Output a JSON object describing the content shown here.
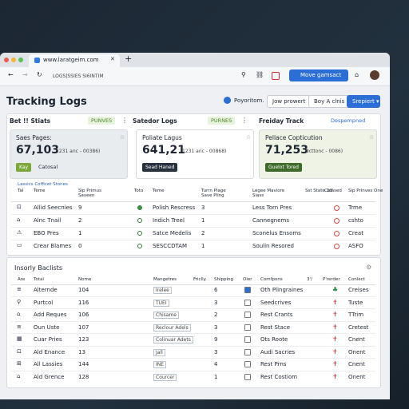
{
  "browser": {
    "tab": "www.laratgeim.com",
    "new_tab": "+",
    "address": "LOGS|SSIES SI6INTIM",
    "action": "Move gamsact"
  },
  "header": {
    "title": "Tracking Logs",
    "link": "Poyoritom.",
    "buttons": [
      "Jow prowert",
      "Boy A clnis"
    ],
    "primary": "Srepiert"
  },
  "stats": {
    "tabs": [
      {
        "label": "Bet !! Stiats",
        "badge": "PUNVES"
      },
      {
        "label": "Satedor Logs",
        "badge": "PURNES"
      },
      {
        "label": "Freiday Track",
        "badge": "Despempned"
      }
    ],
    "cards": [
      {
        "label": "Saes Pages:",
        "value": "67,103",
        "note": "1231 anc - 00386)",
        "tag": "Kay",
        "extra": "Catosal"
      },
      {
        "label": "Poliate Lagus",
        "value": "641,21",
        "note": "1231 anc - 00868)",
        "tag": "Sead Haned"
      },
      {
        "label": "Pellace Copticution",
        "value": "71,253",
        "note": "Octtonc - 0086)",
        "tag": "Guelot Tored"
      }
    ],
    "table": {
      "caption": "Lassics Cofficet Stones",
      "columns": [
        "Tal",
        "Teme",
        "Sip Primus Saveen",
        "Toto",
        "Teme",
        "Turrn Plage Save Pling",
        "Legee Maviore Siass",
        "Sst State 3d'",
        "Colased",
        "Sip Prinves One"
      ],
      "rows": [
        [
          "Allid Seecnies",
          "9",
          "Polish Rescress",
          "3",
          "Less Torn Pres",
          "Trme"
        ],
        [
          "Alnc Tnail",
          "2",
          "Indich Treel",
          "1",
          "Cannegnems",
          "cshto"
        ],
        [
          "EBO Pres",
          "1",
          "Satce Medelis",
          "2",
          "Sconelus Ensoms",
          "Creat"
        ],
        [
          "Crear Blames",
          "0",
          "SESCCDTAM",
          "1",
          "Soulin Resored",
          "ASFO"
        ]
      ]
    }
  },
  "list": {
    "title": "Insorly Baclists",
    "columns": [
      "Are",
      "Total",
      "Nome",
      "Mangetres",
      "Friclly",
      "Shipping",
      "Oler",
      "Comfpons",
      "3'/",
      "P'rerder",
      "Conlect"
    ],
    "rows": [
      [
        "Alternde",
        "104",
        "Irelee",
        "6",
        "Oth Plingraines",
        "Creises"
      ],
      [
        "Purtcol",
        "116",
        "TUEI",
        "3",
        "Seedcrives",
        "Tuste"
      ],
      [
        "Add Reques",
        "106",
        "Chisame",
        "2",
        "Rest Crants",
        "TTrim"
      ],
      [
        "Oun Uste",
        "107",
        "Reclour Adels",
        "3",
        "Rest Stace",
        "Cretest"
      ],
      [
        "Cuar Pries",
        "123",
        "Colinuar Adets",
        "9",
        "Ots Roote",
        "Cnent"
      ],
      [
        "Ald Enance",
        "13",
        "Jall",
        "3",
        "Audi Sacries",
        "Onent"
      ],
      [
        "All Lassies",
        "144",
        "INE",
        "4",
        "Rest Prns",
        "Cnent"
      ],
      [
        "Ald Grence",
        "128",
        "Courcer",
        "1",
        "Rest Costiom",
        "Onent"
      ]
    ]
  }
}
